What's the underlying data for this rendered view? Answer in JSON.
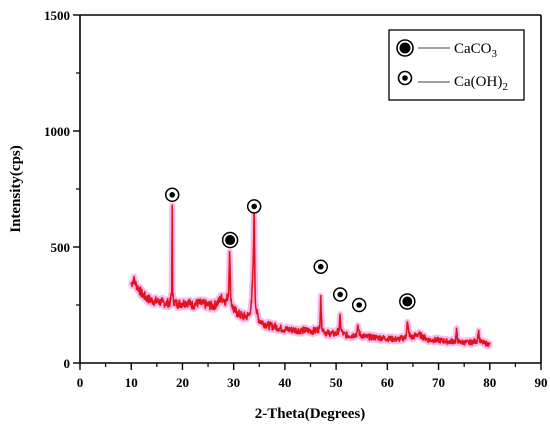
{
  "chart_data": {
    "type": "line",
    "title": "",
    "xlabel": "2-Theta(Degrees)",
    "ylabel": "Intensity(cps)",
    "xlim": [
      0,
      90
    ],
    "ylim": [
      0,
      1500
    ],
    "x_ticks": [
      "0",
      "10",
      "20",
      "30",
      "40",
      "50",
      "60",
      "70",
      "80",
      "90"
    ],
    "y_ticks": [
      "0",
      "500",
      "1000",
      "1500"
    ],
    "grid": false,
    "legend_position": "top-right",
    "colors": {
      "line": "#e0141e",
      "glow": "#f3a6ea",
      "axis": "#000000"
    },
    "series": [
      {
        "x": [
          10,
          10.5,
          11,
          11.5,
          12,
          13,
          14,
          15,
          16,
          17,
          17.6,
          17.9,
          18.0,
          18.1,
          18.4,
          19,
          20,
          21,
          22,
          23,
          24,
          25,
          26,
          27,
          27.5,
          28,
          28.5,
          29.0,
          29.2,
          29.4,
          29.6,
          30,
          31,
          32,
          33,
          33.5,
          33.8,
          34.0,
          34.2,
          34.5,
          35,
          36,
          37,
          38,
          39,
          40,
          42,
          44,
          46,
          46.8,
          47.0,
          47.2,
          47.6,
          48,
          50,
          50.6,
          50.8,
          51.0,
          51.4,
          52,
          53,
          54.0,
          54.3,
          54.6,
          55,
          56,
          58,
          60,
          62,
          63.6,
          63.9,
          64.2,
          64.6,
          65,
          66,
          68,
          70,
          72,
          73.3,
          73.5,
          73.7,
          74,
          76,
          77.5,
          77.8,
          78.1,
          79,
          80
        ],
        "y": [
          340,
          360,
          335,
          320,
          300,
          280,
          270,
          265,
          262,
          258,
          262,
          300,
          680,
          290,
          262,
          255,
          258,
          262,
          250,
          258,
          255,
          250,
          245,
          262,
          280,
          275,
          265,
          300,
          480,
          300,
          255,
          230,
          210,
          200,
          205,
          260,
          420,
          660,
          280,
          215,
          185,
          170,
          160,
          158,
          150,
          145,
          142,
          140,
          138,
          150,
          290,
          160,
          140,
          130,
          125,
          145,
          200,
          140,
          125,
          120,
          118,
          125,
          155,
          125,
          118,
          112,
          110,
          105,
          102,
          110,
          175,
          130,
          110,
          112,
          125,
          100,
          98,
          92,
          95,
          140,
          100,
          90,
          88,
          95,
          135,
          92,
          85,
          80
        ]
      }
    ],
    "legend": [
      {
        "marker": "filled-circle",
        "label": "CaCO",
        "sub": "3"
      },
      {
        "marker": "small-dot-circle",
        "label": "Ca(OH)",
        "sub": "2"
      }
    ],
    "annotations": [
      {
        "marker": "small-dot-circle",
        "x": 18.0,
        "y": 725
      },
      {
        "marker": "filled-circle",
        "x": 29.3,
        "y": 530
      },
      {
        "marker": "small-dot-circle",
        "x": 34.0,
        "y": 675
      },
      {
        "marker": "small-dot-circle",
        "x": 47.0,
        "y": 415
      },
      {
        "marker": "small-dot-circle",
        "x": 50.8,
        "y": 295
      },
      {
        "marker": "small-dot-circle",
        "x": 54.5,
        "y": 250
      },
      {
        "marker": "filled-circle",
        "x": 63.9,
        "y": 265
      }
    ]
  }
}
